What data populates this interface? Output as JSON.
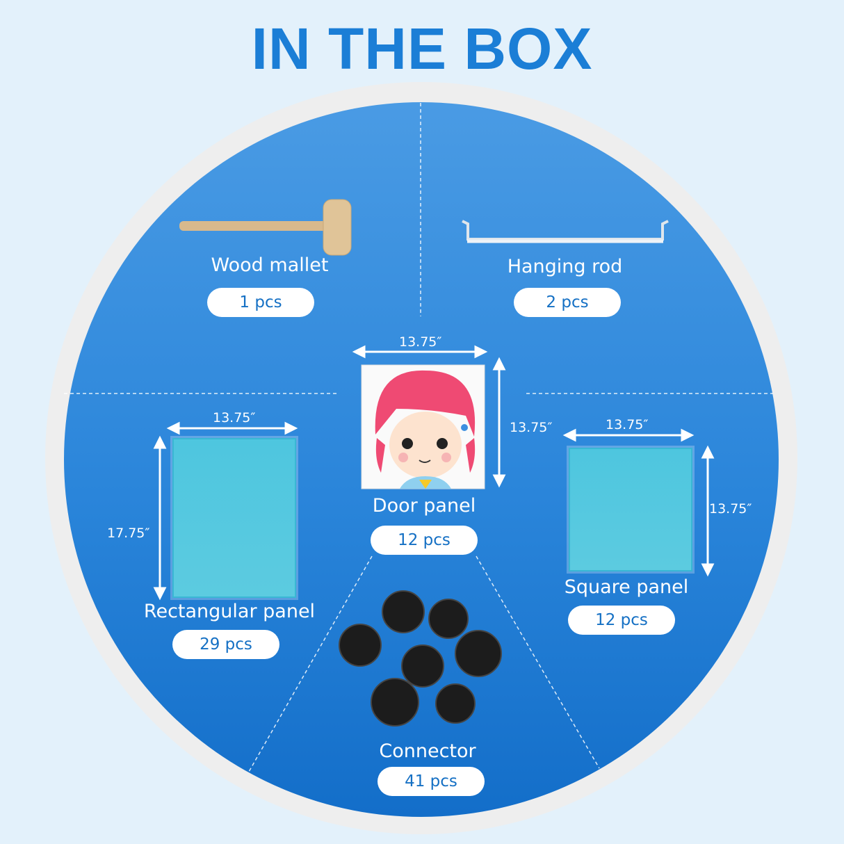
{
  "title": "IN THE BOX",
  "colors": {
    "accent": "#1b7ed6",
    "background": "#e3f1fb",
    "panel": "#4ec6df"
  },
  "items": [
    {
      "name": "Wood mallet",
      "qty": "1 pcs",
      "icon": "mallet-icon"
    },
    {
      "name": "Hanging rod",
      "qty": "2 pcs",
      "icon": "hanging-rod-icon"
    },
    {
      "name": "Door panel",
      "qty": "12 pcs",
      "width": "13.75″",
      "height": "13.75″",
      "icon": "door-panel-image"
    },
    {
      "name": "Rectangular panel",
      "qty": "29 pcs",
      "width": "13.75″",
      "height": "17.75″",
      "icon": "rectangular-panel-image"
    },
    {
      "name": "Square panel",
      "qty": "12 pcs",
      "width": "13.75″",
      "height": "13.75″",
      "icon": "square-panel-image"
    },
    {
      "name": "Connector",
      "qty": "41 pcs",
      "icon": "connector-image"
    }
  ]
}
